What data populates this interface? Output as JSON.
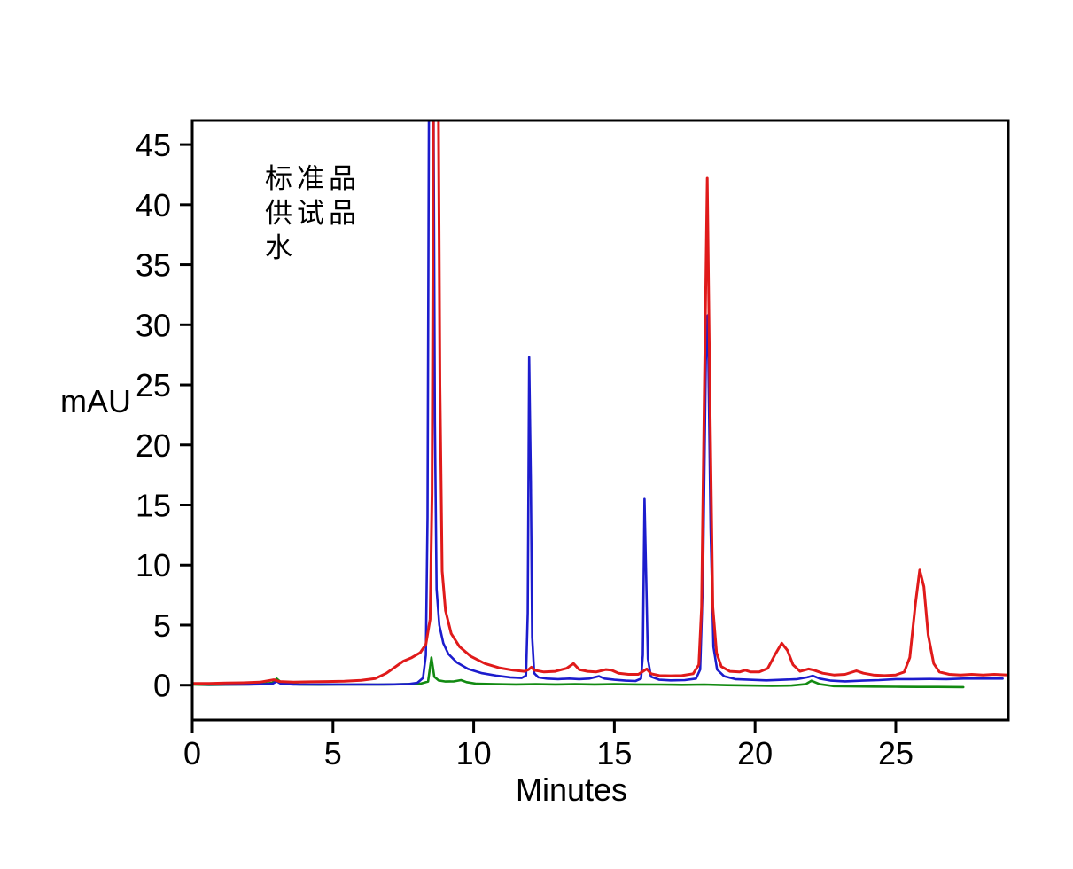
{
  "page": {
    "background": "#ffffff"
  },
  "chart_data": {
    "type": "line",
    "title": "",
    "xlabel": "Minutes",
    "ylabel": "mAU",
    "xlim": [
      0,
      29
    ],
    "ylim": [
      -2.9,
      47
    ],
    "x_ticks": [
      0,
      5,
      10,
      15,
      20,
      25
    ],
    "y_ticks": [
      0,
      5,
      10,
      15,
      20,
      25,
      30,
      35,
      40,
      45
    ],
    "grid": false,
    "legend_position": "inside-upper-left",
    "axis_color": "#000000",
    "note_offscale": "Main peak at ~8.4-8.7 min exceeds the 47 mAU axis top for blue and red traces (clipped)",
    "series": [
      {
        "key": "standard",
        "name": "标准品",
        "color": "#1c1ccd",
        "points": [
          [
            0,
            0.1
          ],
          [
            0.5,
            0.05
          ],
          [
            1.0,
            0.06
          ],
          [
            1.5,
            0.05
          ],
          [
            2.0,
            0.06
          ],
          [
            2.6,
            0.08
          ],
          [
            2.85,
            0.12
          ],
          [
            3.0,
            0.32
          ],
          [
            3.15,
            0.12
          ],
          [
            3.6,
            0.06
          ],
          [
            4.2,
            0.05
          ],
          [
            4.8,
            0.06
          ],
          [
            5.4,
            0.05
          ],
          [
            6.0,
            0.06
          ],
          [
            6.6,
            0.05
          ],
          [
            7.2,
            0.07
          ],
          [
            7.7,
            0.1
          ],
          [
            8.0,
            0.2
          ],
          [
            8.2,
            0.6
          ],
          [
            8.3,
            2.5
          ],
          [
            8.36,
            14
          ],
          [
            8.42,
            55
          ],
          [
            8.56,
            55
          ],
          [
            8.62,
            22
          ],
          [
            8.68,
            8
          ],
          [
            8.78,
            5
          ],
          [
            8.92,
            3.5
          ],
          [
            9.1,
            2.6
          ],
          [
            9.4,
            1.9
          ],
          [
            9.8,
            1.35
          ],
          [
            10.3,
            1.0
          ],
          [
            10.8,
            0.8
          ],
          [
            11.3,
            0.65
          ],
          [
            11.7,
            0.6
          ],
          [
            11.86,
            0.8
          ],
          [
            11.92,
            6
          ],
          [
            11.97,
            27.3
          ],
          [
            12.03,
            17
          ],
          [
            12.08,
            4
          ],
          [
            12.15,
            1.0
          ],
          [
            12.3,
            0.65
          ],
          [
            12.6,
            0.55
          ],
          [
            13.0,
            0.5
          ],
          [
            13.4,
            0.55
          ],
          [
            13.75,
            0.5
          ],
          [
            14.1,
            0.55
          ],
          [
            14.45,
            0.75
          ],
          [
            14.65,
            0.55
          ],
          [
            15.0,
            0.45
          ],
          [
            15.4,
            0.38
          ],
          [
            15.75,
            0.35
          ],
          [
            15.95,
            0.55
          ],
          [
            16.01,
            2.5
          ],
          [
            16.07,
            15.5
          ],
          [
            16.13,
            9
          ],
          [
            16.19,
            2.2
          ],
          [
            16.3,
            0.7
          ],
          [
            16.6,
            0.45
          ],
          [
            17.0,
            0.4
          ],
          [
            17.5,
            0.42
          ],
          [
            17.9,
            0.55
          ],
          [
            18.05,
            1.3
          ],
          [
            18.15,
            9
          ],
          [
            18.25,
            27
          ],
          [
            18.32,
            30.8
          ],
          [
            18.42,
            13
          ],
          [
            18.52,
            3.2
          ],
          [
            18.65,
            1.3
          ],
          [
            18.9,
            0.75
          ],
          [
            19.3,
            0.5
          ],
          [
            19.8,
            0.45
          ],
          [
            20.4,
            0.4
          ],
          [
            21.0,
            0.45
          ],
          [
            21.5,
            0.5
          ],
          [
            21.85,
            0.65
          ],
          [
            22.05,
            0.78
          ],
          [
            22.3,
            0.55
          ],
          [
            22.7,
            0.38
          ],
          [
            23.2,
            0.32
          ],
          [
            23.8,
            0.38
          ],
          [
            24.4,
            0.42
          ],
          [
            25.0,
            0.5
          ],
          [
            25.6,
            0.5
          ],
          [
            26.2,
            0.52
          ],
          [
            26.8,
            0.5
          ],
          [
            27.4,
            0.55
          ],
          [
            28.0,
            0.55
          ],
          [
            28.8,
            0.55
          ]
        ]
      },
      {
        "key": "sample",
        "name": "供试品",
        "color": "#e01a1a",
        "points": [
          [
            0,
            0.15
          ],
          [
            0.6,
            0.15
          ],
          [
            1.2,
            0.18
          ],
          [
            1.8,
            0.2
          ],
          [
            2.4,
            0.25
          ],
          [
            2.9,
            0.45
          ],
          [
            3.1,
            0.3
          ],
          [
            3.6,
            0.25
          ],
          [
            4.2,
            0.28
          ],
          [
            4.8,
            0.3
          ],
          [
            5.4,
            0.33
          ],
          [
            6.0,
            0.4
          ],
          [
            6.5,
            0.55
          ],
          [
            6.9,
            1.0
          ],
          [
            7.2,
            1.5
          ],
          [
            7.5,
            2.0
          ],
          [
            7.8,
            2.3
          ],
          [
            8.1,
            2.7
          ],
          [
            8.3,
            3.4
          ],
          [
            8.45,
            5.5
          ],
          [
            8.52,
            16
          ],
          [
            8.58,
            55
          ],
          [
            8.73,
            55
          ],
          [
            8.8,
            25
          ],
          [
            8.88,
            9.5
          ],
          [
            9.0,
            6.2
          ],
          [
            9.2,
            4.3
          ],
          [
            9.5,
            3.2
          ],
          [
            9.9,
            2.4
          ],
          [
            10.4,
            1.8
          ],
          [
            10.9,
            1.45
          ],
          [
            11.4,
            1.25
          ],
          [
            11.8,
            1.15
          ],
          [
            11.95,
            1.3
          ],
          [
            12.05,
            1.5
          ],
          [
            12.15,
            1.25
          ],
          [
            12.5,
            1.1
          ],
          [
            12.9,
            1.15
          ],
          [
            13.3,
            1.4
          ],
          [
            13.55,
            1.8
          ],
          [
            13.75,
            1.3
          ],
          [
            14.05,
            1.15
          ],
          [
            14.35,
            1.1
          ],
          [
            14.7,
            1.3
          ],
          [
            14.9,
            1.25
          ],
          [
            15.15,
            1.0
          ],
          [
            15.5,
            0.9
          ],
          [
            15.85,
            0.9
          ],
          [
            16.05,
            1.2
          ],
          [
            16.15,
            1.35
          ],
          [
            16.3,
            0.95
          ],
          [
            16.6,
            0.8
          ],
          [
            17.0,
            0.78
          ],
          [
            17.4,
            0.8
          ],
          [
            17.8,
            0.95
          ],
          [
            18.0,
            1.7
          ],
          [
            18.1,
            6.5
          ],
          [
            18.2,
            25
          ],
          [
            18.3,
            42.2
          ],
          [
            18.4,
            23
          ],
          [
            18.5,
            6.5
          ],
          [
            18.63,
            2.7
          ],
          [
            18.8,
            1.55
          ],
          [
            19.1,
            1.15
          ],
          [
            19.45,
            1.1
          ],
          [
            19.65,
            1.25
          ],
          [
            19.85,
            1.1
          ],
          [
            20.15,
            1.1
          ],
          [
            20.45,
            1.4
          ],
          [
            20.7,
            2.5
          ],
          [
            20.95,
            3.5
          ],
          [
            21.15,
            2.9
          ],
          [
            21.35,
            1.7
          ],
          [
            21.6,
            1.15
          ],
          [
            21.9,
            1.35
          ],
          [
            22.1,
            1.25
          ],
          [
            22.4,
            1.0
          ],
          [
            22.8,
            0.85
          ],
          [
            23.2,
            0.9
          ],
          [
            23.6,
            1.2
          ],
          [
            23.85,
            1.0
          ],
          [
            24.2,
            0.85
          ],
          [
            24.6,
            0.8
          ],
          [
            25.0,
            0.85
          ],
          [
            25.3,
            1.1
          ],
          [
            25.5,
            2.3
          ],
          [
            25.7,
            6.8
          ],
          [
            25.85,
            9.6
          ],
          [
            26.0,
            8.2
          ],
          [
            26.15,
            4.2
          ],
          [
            26.35,
            1.8
          ],
          [
            26.55,
            1.1
          ],
          [
            26.9,
            0.9
          ],
          [
            27.3,
            0.85
          ],
          [
            27.7,
            0.9
          ],
          [
            28.1,
            0.85
          ],
          [
            28.5,
            0.9
          ],
          [
            29.0,
            0.85
          ]
        ]
      },
      {
        "key": "water",
        "name": "水",
        "color": "#128a12",
        "points": [
          [
            0,
            0.05
          ],
          [
            0.6,
            0.02
          ],
          [
            1.2,
            0.04
          ],
          [
            1.8,
            0.05
          ],
          [
            2.4,
            0.08
          ],
          [
            2.85,
            0.2
          ],
          [
            3.0,
            0.55
          ],
          [
            3.2,
            0.15
          ],
          [
            3.8,
            0.05
          ],
          [
            4.5,
            0.04
          ],
          [
            5.2,
            0.05
          ],
          [
            6.0,
            0.05
          ],
          [
            6.8,
            0.05
          ],
          [
            7.5,
            0.08
          ],
          [
            8.1,
            0.12
          ],
          [
            8.38,
            0.3
          ],
          [
            8.5,
            2.3
          ],
          [
            8.6,
            0.7
          ],
          [
            8.75,
            0.4
          ],
          [
            9.0,
            0.3
          ],
          [
            9.3,
            0.32
          ],
          [
            9.55,
            0.42
          ],
          [
            9.75,
            0.25
          ],
          [
            10.1,
            0.12
          ],
          [
            10.8,
            0.08
          ],
          [
            11.5,
            0.06
          ],
          [
            12.2,
            0.08
          ],
          [
            12.9,
            0.06
          ],
          [
            13.6,
            0.08
          ],
          [
            14.3,
            0.06
          ],
          [
            15.0,
            0.08
          ],
          [
            15.8,
            0.06
          ],
          [
            16.6,
            0.05
          ],
          [
            17.4,
            0.03
          ],
          [
            18.2,
            0.05
          ],
          [
            19.0,
            0.0
          ],
          [
            19.8,
            -0.03
          ],
          [
            20.6,
            -0.05
          ],
          [
            21.3,
            -0.03
          ],
          [
            21.8,
            0.08
          ],
          [
            22.0,
            0.37
          ],
          [
            22.3,
            0.08
          ],
          [
            22.8,
            -0.08
          ],
          [
            23.5,
            -0.1
          ],
          [
            24.2,
            -0.12
          ],
          [
            25.0,
            -0.13
          ],
          [
            25.8,
            -0.15
          ],
          [
            26.5,
            -0.15
          ],
          [
            27.4,
            -0.16
          ]
        ]
      }
    ]
  }
}
